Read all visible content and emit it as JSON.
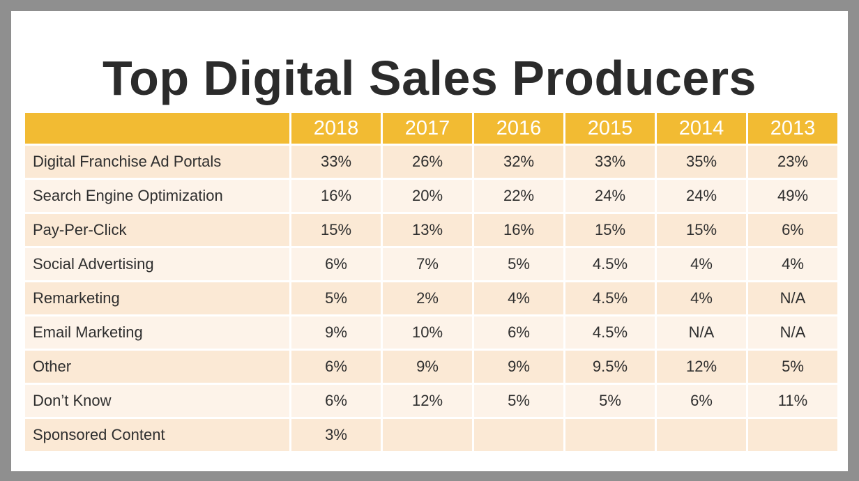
{
  "chart_data": {
    "type": "table",
    "title": "Top Digital Sales Producers",
    "columns": [
      "2018",
      "2017",
      "2016",
      "2015",
      "2014",
      "2013"
    ],
    "rows": [
      {
        "label": "Digital Franchise Ad Portals",
        "values": [
          "33%",
          "26%",
          "32%",
          "33%",
          "35%",
          "23%"
        ]
      },
      {
        "label": "Search Engine Optimization",
        "values": [
          "16%",
          "20%",
          "22%",
          "24%",
          "24%",
          "49%"
        ]
      },
      {
        "label": "Pay-Per-Click",
        "values": [
          "15%",
          "13%",
          "16%",
          "15%",
          "15%",
          "6%"
        ]
      },
      {
        "label": "Social Advertising",
        "values": [
          "6%",
          "7%",
          "5%",
          "4.5%",
          "4%",
          "4%"
        ]
      },
      {
        "label": "Remarketing",
        "values": [
          "5%",
          "2%",
          "4%",
          "4.5%",
          "4%",
          "N/A"
        ]
      },
      {
        "label": "Email Marketing",
        "values": [
          "9%",
          "10%",
          "6%",
          "4.5%",
          "N/A",
          "N/A"
        ]
      },
      {
        "label": "Other",
        "values": [
          "6%",
          "9%",
          "9%",
          "9.5%",
          "12%",
          "5%"
        ]
      },
      {
        "label": "Don’t Know",
        "values": [
          "6%",
          "12%",
          "5%",
          "5%",
          "6%",
          "11%"
        ]
      },
      {
        "label": "Sponsored Content",
        "values": [
          "3%",
          "",
          "",
          "",
          "",
          ""
        ]
      }
    ]
  },
  "colors": {
    "header_bg": "#f2bb33",
    "header_text": "#ffffff",
    "row_odd": "#fbe9d5",
    "row_even": "#fdf3e9",
    "frame": "#8f8f8f",
    "title_text": "#2b2b2b"
  }
}
